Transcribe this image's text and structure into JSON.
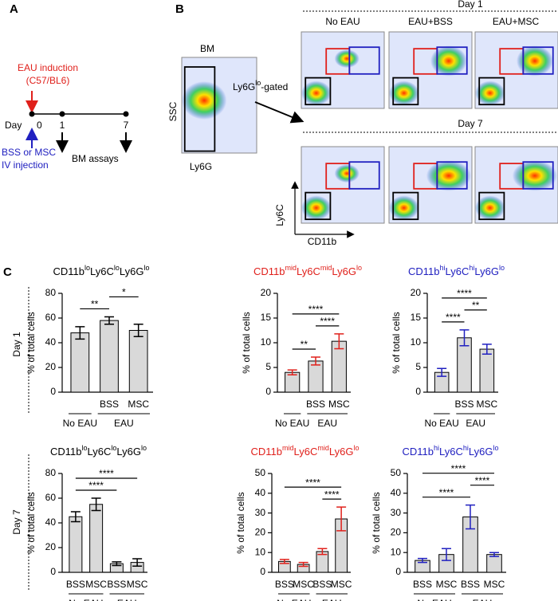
{
  "panel_a": {
    "label": "A",
    "induction": [
      "EAU induction",
      "(C57/BL6)"
    ],
    "day": "Day",
    "days": [
      "0",
      "1",
      "7"
    ],
    "treatment": [
      "BSS or MSC",
      "IV injection"
    ],
    "assays": "BM assays"
  },
  "panel_b": {
    "label": "B",
    "gate": "BM",
    "ssc": "SSC",
    "ly6g": "Ly6G",
    "gated": [
      "Ly6G",
      "lo",
      "-gated"
    ],
    "rows": [
      "Day 1",
      "Day 7"
    ],
    "columns": [
      "No EAU",
      "EAU+BSS",
      "EAU+MSC"
    ],
    "ly6c": "Ly6C",
    "cd11b": "CD11b"
  },
  "panel_c": {
    "label": "C",
    "rows": [
      "Day 1",
      "Day 7"
    ]
  },
  "chart_data": [
    {
      "type": "bar",
      "title": [
        "CD11b",
        "lo",
        "Ly6C",
        "lo",
        "Ly6G",
        "lo"
      ],
      "title_color": "#000000",
      "ylabel": "% of total cells",
      "color": "#d9d9d9",
      "point_color": "#000000",
      "groups": [
        {
          "name": "No EAU",
          "categories": [
            null
          ]
        },
        {
          "name": "EAU",
          "categories": [
            "BSS",
            "MSC"
          ]
        }
      ],
      "values": [
        48,
        58,
        50
      ],
      "errors": [
        5,
        3,
        5
      ],
      "ylim": [
        0,
        80
      ],
      "yticks": [
        0,
        20,
        40,
        60,
        80
      ],
      "comparisons": [
        {
          "label": "**",
          "pair": [
            0,
            1
          ]
        },
        {
          "label": "*",
          "pair": [
            1,
            2
          ]
        }
      ]
    },
    {
      "type": "bar",
      "title": [
        "CD11b",
        "mid",
        "Ly6C",
        "mid",
        "Ly6G",
        "lo"
      ],
      "title_color": "#e0201b",
      "ylabel": "% of total cells",
      "color": "#d9d9d9",
      "point_color": "#e0201b",
      "groups": [
        {
          "name": "No EAU",
          "categories": [
            null
          ]
        },
        {
          "name": "EAU",
          "categories": [
            "BSS",
            "MSC"
          ]
        }
      ],
      "values": [
        4,
        6.3,
        10.3
      ],
      "errors": [
        0.5,
        0.8,
        1.5
      ],
      "ylim": [
        0,
        20
      ],
      "yticks": [
        0,
        5,
        10,
        15,
        20
      ],
      "comparisons": [
        {
          "label": "**",
          "pair": [
            0,
            1
          ]
        },
        {
          "label": "****",
          "pair": [
            1,
            2
          ]
        },
        {
          "label": "****",
          "pair": [
            0,
            2
          ]
        }
      ]
    },
    {
      "type": "bar",
      "title": [
        "CD11b",
        "hi",
        "Ly6C",
        "hi",
        "Ly6G",
        "lo"
      ],
      "title_color": "#2020c0",
      "ylabel": "% of total cells",
      "color": "#d9d9d9",
      "point_color": "#2020c0",
      "groups": [
        {
          "name": "No EAU",
          "categories": [
            null
          ]
        },
        {
          "name": "EAU",
          "categories": [
            "BSS",
            "MSC"
          ]
        }
      ],
      "values": [
        4,
        11,
        8.7
      ],
      "errors": [
        0.8,
        1.6,
        1
      ],
      "ylim": [
        0,
        20
      ],
      "yticks": [
        0,
        5,
        10,
        15,
        20
      ],
      "comparisons": [
        {
          "label": "****",
          "pair": [
            0,
            1
          ]
        },
        {
          "label": "**",
          "pair": [
            1,
            2
          ]
        },
        {
          "label": "****",
          "pair": [
            0,
            2
          ]
        }
      ]
    },
    {
      "type": "bar",
      "title": [
        "CD11b",
        "lo",
        "Ly6C",
        "lo",
        "Ly6G",
        "lo"
      ],
      "title_color": "#000000",
      "ylabel": "% of total cells",
      "color": "#d9d9d9",
      "point_color": "#000000",
      "groups": [
        {
          "name": "No EAU",
          "categories": [
            "BSS",
            "MSC"
          ]
        },
        {
          "name": "EAU",
          "categories": [
            "BSS",
            "MSC"
          ]
        }
      ],
      "values": [
        45,
        55,
        7,
        8
      ],
      "errors": [
        4,
        5,
        1.5,
        3
      ],
      "ylim": [
        0,
        80
      ],
      "yticks": [
        0,
        20,
        40,
        60,
        80
      ],
      "comparisons": [
        {
          "label": "****",
          "pair": [
            0,
            2
          ]
        },
        {
          "label": "****",
          "pair": [
            0,
            3
          ]
        }
      ]
    },
    {
      "type": "bar",
      "title": [
        "CD11b",
        "mid",
        "Ly6C",
        "mid",
        "Ly6G",
        "lo"
      ],
      "title_color": "#e0201b",
      "ylabel": "% of total cells",
      "color": "#d9d9d9",
      "point_color": "#e0201b",
      "groups": [
        {
          "name": "No EAU",
          "categories": [
            "BSS",
            "MSC"
          ]
        },
        {
          "name": "EAU",
          "categories": [
            "BSS",
            "MSC"
          ]
        }
      ],
      "values": [
        5.5,
        4,
        10.5,
        27
      ],
      "errors": [
        1,
        1,
        1.5,
        6
      ],
      "ylim": [
        0,
        50
      ],
      "yticks": [
        0,
        10,
        20,
        30,
        40,
        50
      ],
      "comparisons": [
        {
          "label": "****",
          "pair": [
            2,
            3
          ]
        },
        {
          "label": "****",
          "pair": [
            0,
            3
          ]
        }
      ]
    },
    {
      "type": "bar",
      "title": [
        "CD11b",
        "hi",
        "Ly6C",
        "hi",
        "Ly6G",
        "lo"
      ],
      "title_color": "#2020c0",
      "ylabel": "% of total cells",
      "color": "#d9d9d9",
      "point_color": "#2020c0",
      "groups": [
        {
          "name": "No EAU",
          "categories": [
            "BSS",
            "MSC"
          ]
        },
        {
          "name": "EAU",
          "categories": [
            "BSS",
            "MSC"
          ]
        }
      ],
      "values": [
        6,
        9,
        28,
        9
      ],
      "errors": [
        1,
        3,
        6,
        1
      ],
      "ylim": [
        0,
        50
      ],
      "yticks": [
        0,
        10,
        20,
        30,
        40,
        50
      ],
      "comparisons": [
        {
          "label": "****",
          "pair": [
            0,
            2
          ]
        },
        {
          "label": "****",
          "pair": [
            2,
            3
          ]
        },
        {
          "label": "****",
          "pair": [
            0,
            3
          ]
        }
      ]
    }
  ]
}
